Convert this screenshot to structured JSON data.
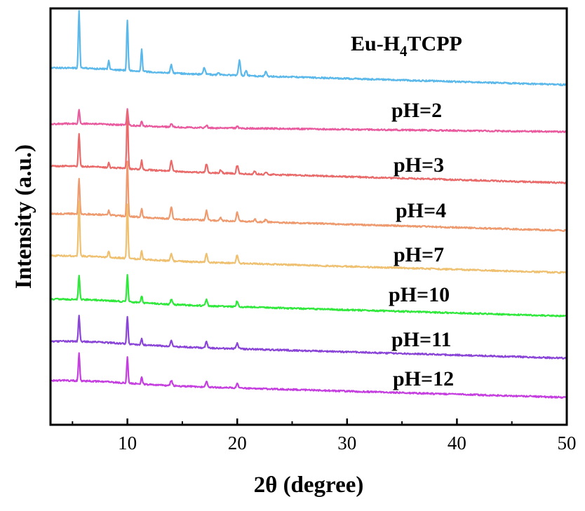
{
  "chart_data": {
    "type": "line",
    "xlabel": "2θ (degree)",
    "ylabel": "Intensity (a.u.)",
    "xlim": [
      3,
      50
    ],
    "xticks": [
      10,
      20,
      30,
      40,
      50
    ],
    "grid": false,
    "legend": "inline-labels-right",
    "series": [
      {
        "name": "Eu-H4TCPP",
        "name_main": "Eu-H",
        "name_sub": "4",
        "name_tail": "TCPP",
        "color": "#5bb8ea",
        "baseline": 0.91,
        "peaks": [
          [
            5.6,
            0.92
          ],
          [
            8.3,
            0.14
          ],
          [
            10.0,
            0.82
          ],
          [
            11.3,
            0.37
          ],
          [
            14.0,
            0.13
          ],
          [
            17.0,
            0.12
          ],
          [
            18.3,
            0.04
          ],
          [
            20.2,
            0.24
          ],
          [
            20.8,
            0.08
          ],
          [
            22.6,
            0.07
          ]
        ]
      },
      {
        "name": "pH=2",
        "color": "#ea5a9e",
        "baseline": 0.25,
        "peaks": [
          [
            5.6,
            0.22
          ],
          [
            10.0,
            0.25
          ],
          [
            11.3,
            0.07
          ],
          [
            14.0,
            0.05
          ],
          [
            17.2,
            0.04
          ],
          [
            20.0,
            0.03
          ]
        ]
      },
      {
        "name": "pH=3",
        "color": "#ea6a6a",
        "baseline": 0.38,
        "peaks": [
          [
            5.6,
            0.52
          ],
          [
            8.3,
            0.07
          ],
          [
            10.0,
            0.92
          ],
          [
            11.3,
            0.14
          ],
          [
            14.0,
            0.16
          ],
          [
            17.2,
            0.14
          ],
          [
            18.5,
            0.05
          ],
          [
            20.0,
            0.13
          ],
          [
            21.6,
            0.04
          ],
          [
            22.6,
            0.04
          ]
        ]
      },
      {
        "name": "pH=4",
        "color": "#ee9a6e",
        "baseline": 0.41,
        "peaks": [
          [
            5.6,
            0.57
          ],
          [
            8.3,
            0.08
          ],
          [
            10.0,
            0.88
          ],
          [
            11.3,
            0.14
          ],
          [
            14.0,
            0.19
          ],
          [
            17.2,
            0.15
          ],
          [
            18.5,
            0.05
          ],
          [
            20.0,
            0.14
          ],
          [
            21.6,
            0.04
          ],
          [
            22.6,
            0.04
          ]
        ]
      },
      {
        "name": "pH=7",
        "color": "#efc070",
        "baseline": 0.37,
        "peaks": [
          [
            5.6,
            0.86
          ],
          [
            8.3,
            0.1
          ],
          [
            10.0,
            0.85
          ],
          [
            11.3,
            0.13
          ],
          [
            14.0,
            0.11
          ],
          [
            17.2,
            0.13
          ],
          [
            20.0,
            0.13
          ]
        ]
      },
      {
        "name": "pH=10",
        "color": "#2ee83a",
        "baseline": 0.3,
        "peaks": [
          [
            5.6,
            0.38
          ],
          [
            10.0,
            0.43
          ],
          [
            11.3,
            0.11
          ],
          [
            14.0,
            0.08
          ],
          [
            17.2,
            0.1
          ],
          [
            20.0,
            0.09
          ]
        ]
      },
      {
        "name": "pH=11",
        "color": "#8a45d8",
        "baseline": 0.35,
        "peaks": [
          [
            5.6,
            0.42
          ],
          [
            10.0,
            0.44
          ],
          [
            11.3,
            0.1
          ],
          [
            14.0,
            0.09
          ],
          [
            17.2,
            0.1
          ],
          [
            20.0,
            0.09
          ]
        ]
      },
      {
        "name": "pH=12",
        "color": "#c53ee0",
        "baseline": 0.33,
        "peaks": [
          [
            5.6,
            0.43
          ],
          [
            10.0,
            0.41
          ],
          [
            11.3,
            0.1
          ],
          [
            14.0,
            0.08
          ],
          [
            17.2,
            0.09
          ],
          [
            20.0,
            0.08
          ]
        ]
      }
    ]
  }
}
